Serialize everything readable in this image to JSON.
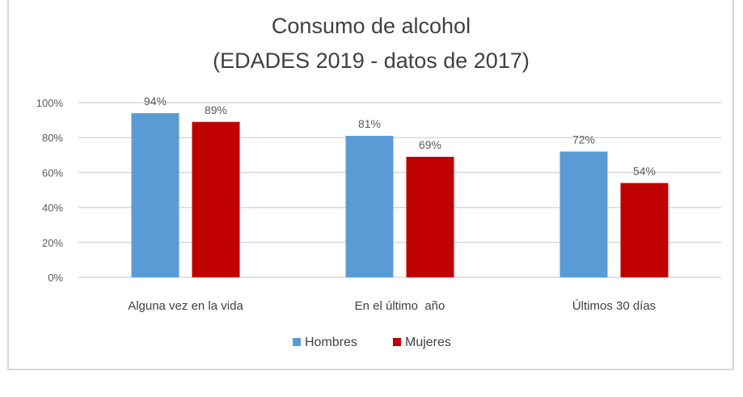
{
  "chart_data": {
    "type": "bar",
    "title": [
      "Consumo de alcohol",
      "(EDADES 2019 - datos de 2017)"
    ],
    "categories": [
      "Alguna vez en la vida",
      "En el último  año",
      "Últimos 30 días"
    ],
    "series": [
      {
        "name": "Hombres",
        "color": "#5b9bd5",
        "values": [
          94,
          81,
          72
        ],
        "labels": [
          "94%",
          "81%",
          "72%"
        ]
      },
      {
        "name": "Mujeres",
        "color": "#c00000",
        "values": [
          89,
          69,
          54
        ],
        "labels": [
          "89%",
          "69%",
          "54%"
        ]
      }
    ],
    "yticks": [
      0,
      20,
      40,
      60,
      80,
      100
    ],
    "ytick_labels": [
      "0%",
      "20%",
      "40%",
      "60%",
      "80%",
      "100%"
    ],
    "ylim": [
      0,
      100
    ],
    "xlabel": "",
    "ylabel": "",
    "grid": true,
    "legend_position": "bottom"
  }
}
